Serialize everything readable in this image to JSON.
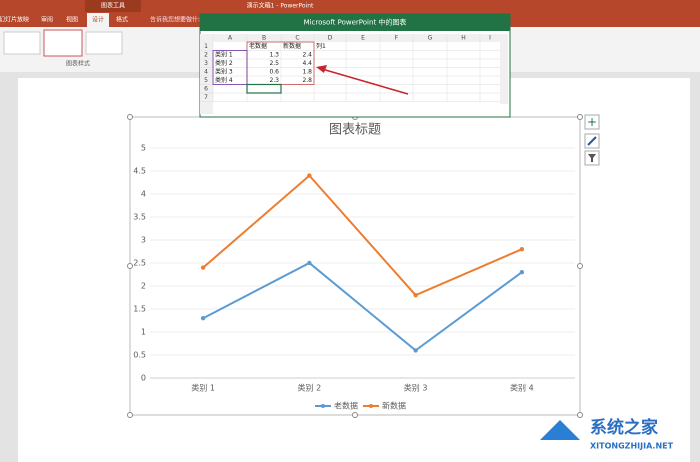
{
  "window": {
    "title": "演示文稿1 - PowerPoint",
    "context_tab": "图表工具",
    "tabs": [
      "幻灯片放映",
      "审阅",
      "视图",
      "设计",
      "格式"
    ],
    "search": "告诉我您想要做什么...",
    "group_label": "图表样式"
  },
  "excel": {
    "title": "Microsoft PowerPoint 中的图表",
    "columns": [
      "A",
      "B",
      "C",
      "D",
      "E",
      "F",
      "G",
      "H",
      "I"
    ],
    "row_numbers": [
      1,
      2,
      3,
      4,
      5,
      6,
      7
    ],
    "rows": [
      [
        null,
        "老数据",
        "新数据",
        "列1"
      ],
      [
        "类别 1",
        1.3,
        2.4,
        null
      ],
      [
        "类别 2",
        2.5,
        4.4,
        null
      ],
      [
        "类别 3",
        0.6,
        1.8,
        null
      ],
      [
        "类别 4",
        2.3,
        2.8,
        null
      ]
    ]
  },
  "chart_data": {
    "type": "line",
    "title": "图表标题",
    "categories": [
      "类别 1",
      "类别 2",
      "类别 3",
      "类别 4"
    ],
    "series": [
      {
        "name": "老数据",
        "color": "#5b9bd5",
        "values": [
          1.3,
          2.5,
          0.6,
          2.3
        ]
      },
      {
        "name": "新数据",
        "color": "#ed7d31",
        "values": [
          2.4,
          4.4,
          1.8,
          2.8
        ]
      }
    ],
    "ylim": [
      0,
      5
    ],
    "yticks": [
      0,
      0.5,
      1,
      1.5,
      2,
      2.5,
      3,
      3.5,
      4,
      4.5,
      5
    ],
    "grid": true,
    "legend": "bottom"
  },
  "watermark": {
    "name": "系统之家",
    "url": "XITONGZHIJIA.NET"
  }
}
